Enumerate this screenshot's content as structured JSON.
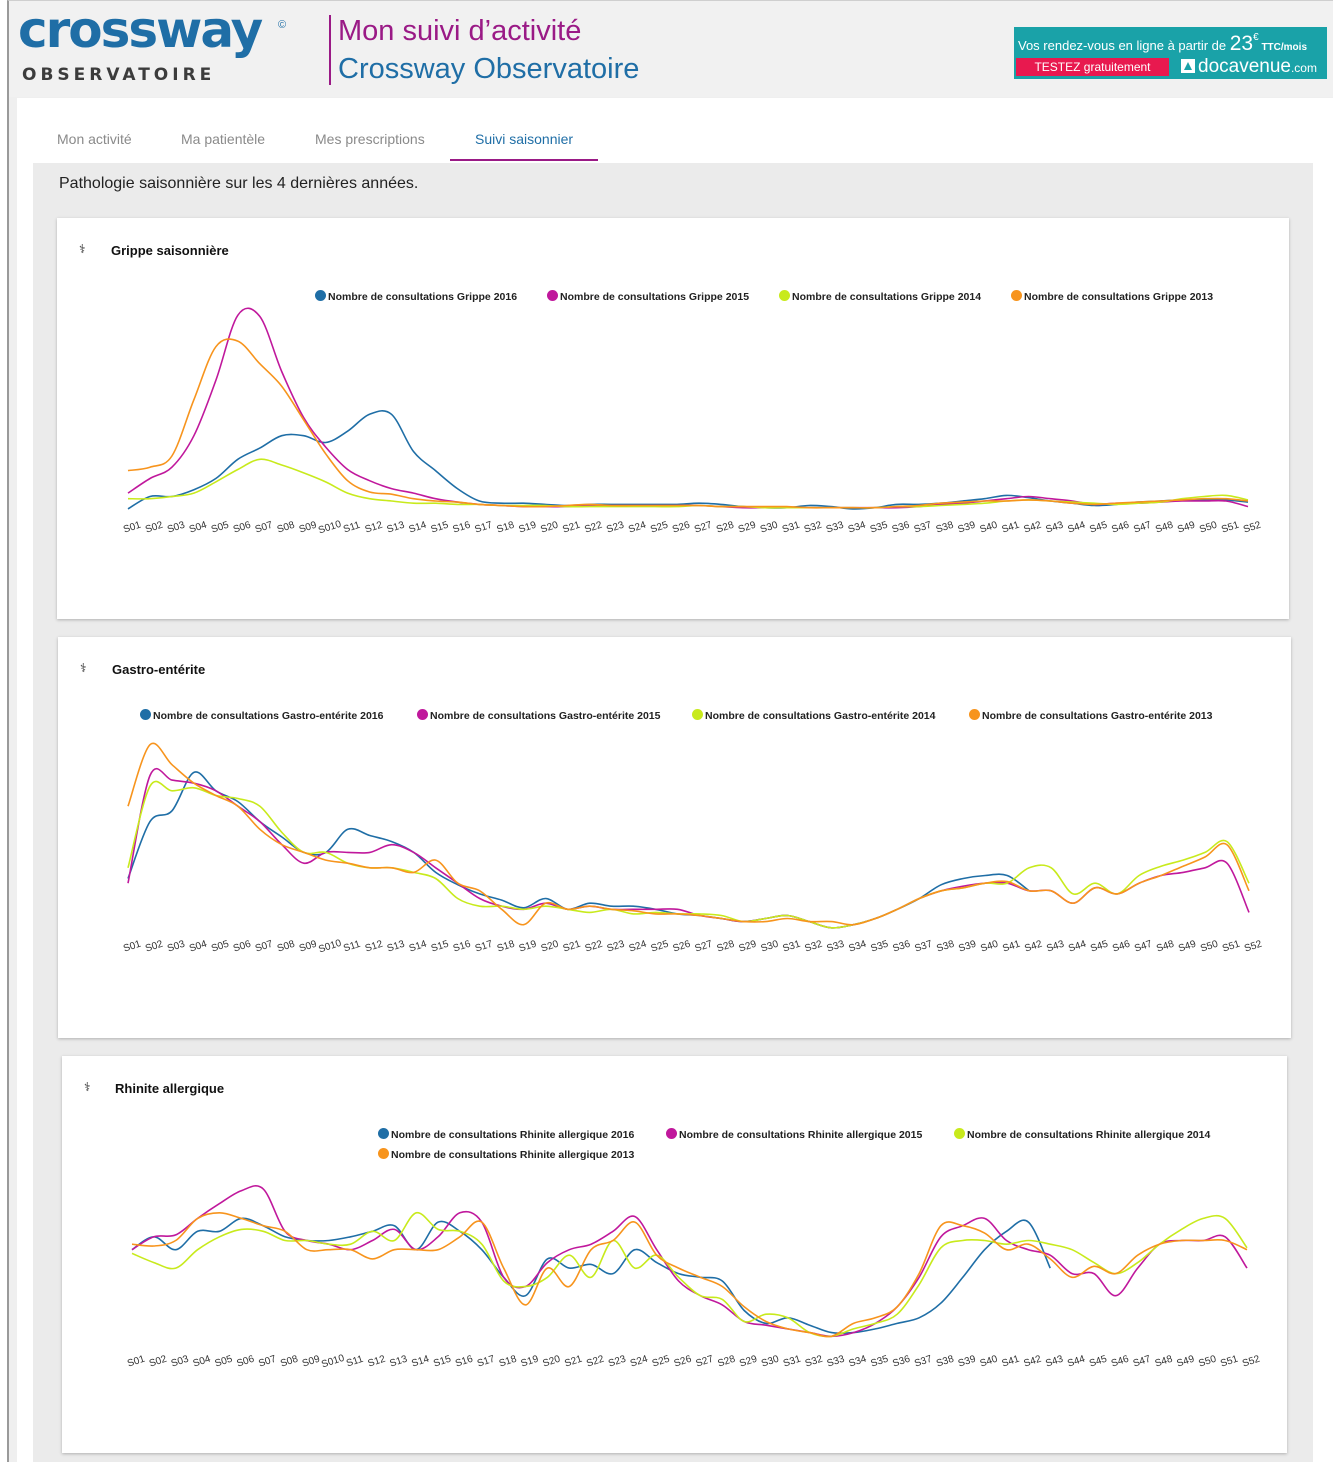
{
  "header": {
    "logo_word": "crossway",
    "logo_reg": "©",
    "logo_sub": "OBSERVATOIRE",
    "title_line1": "Mon suivi d’activité",
    "title_line2": "Crossway Observatoire"
  },
  "ad": {
    "text_prefix": "Vos rendez-vous en ligne à partir de ",
    "price": "23",
    "currency": "€",
    "suffix": " TTC/mois",
    "button": "TESTEZ gratuitement",
    "brand_main": "docavenue",
    "brand_ext": ".com",
    "background": "#1aa2a8",
    "button_color": "#e8194f"
  },
  "tabs": [
    {
      "label": "Mon activité",
      "active": false
    },
    {
      "label": "Ma patientèle",
      "active": false
    },
    {
      "label": "Mes prescriptions",
      "active": false
    },
    {
      "label": "Suivi saisonnier",
      "active": true
    }
  ],
  "subtitle": "Pathologie saisonnière sur les 4 dernières années.",
  "colors": {
    "y2016": "#1f6ea6",
    "y2015": "#c0189c",
    "y2014": "#c8ea1c",
    "y2013": "#f7941d",
    "accent": "#9a1a86"
  },
  "weeks": [
    "S01",
    "S02",
    "S03",
    "S04",
    "S05",
    "S06",
    "S07",
    "S08",
    "S09",
    "S010",
    "S11",
    "S12",
    "S13",
    "S14",
    "S15",
    "S16",
    "S17",
    "S18",
    "S19",
    "S20",
    "S21",
    "S22",
    "S23",
    "S24",
    "S25",
    "S26",
    "S27",
    "S28",
    "S29",
    "S30",
    "S31",
    "S32",
    "S33",
    "S34",
    "S35",
    "S36",
    "S37",
    "S38",
    "S39",
    "S40",
    "S41",
    "S42",
    "S43",
    "S44",
    "S45",
    "S46",
    "S47",
    "S48",
    "S49",
    "S50",
    "S51",
    "S52"
  ],
  "chart_data": [
    {
      "type": "line",
      "title": "Grippe saisonnière",
      "categories_ref": "weeks",
      "series": [
        {
          "name": "Nombre de consultations Grippe 2016",
          "color": "#1f6ea6",
          "values": [
            1,
            12,
            12,
            18,
            28,
            45,
            55,
            66,
            66,
            60,
            70,
            85,
            85,
            52,
            35,
            19,
            8,
            6,
            6,
            5,
            4,
            5,
            5,
            5,
            5,
            5,
            6,
            5,
            3,
            2,
            2,
            4,
            3,
            1,
            2,
            5,
            5,
            6,
            8,
            10,
            13,
            11,
            8,
            6,
            4,
            5,
            7,
            8,
            9,
            9,
            9,
            7
          ]
        },
        {
          "name": "Nombre de consultations Grippe 2015",
          "color": "#c0189c",
          "values": [
            15,
            28,
            38,
            66,
            115,
            173,
            172,
            123,
            82,
            56,
            36,
            26,
            19,
            15,
            10,
            7,
            5,
            4,
            3,
            3,
            3,
            4,
            4,
            4,
            4,
            4,
            4,
            3,
            2,
            2,
            2,
            2,
            2,
            2,
            2,
            2,
            3,
            5,
            6,
            8,
            10,
            12,
            10,
            8,
            5,
            6,
            6,
            7,
            8,
            8,
            8,
            3
          ]
        },
        {
          "name": "Nombre de consultations Grippe 2014",
          "color": "#c8ea1c",
          "values": [
            10,
            10,
            12,
            15,
            25,
            36,
            45,
            40,
            33,
            25,
            15,
            10,
            8,
            6,
            6,
            5,
            5,
            4,
            4,
            4,
            3,
            3,
            3,
            3,
            3,
            3,
            4,
            3,
            3,
            2,
            2,
            2,
            2,
            2,
            2,
            3,
            3,
            4,
            5,
            6,
            8,
            9,
            8,
            7,
            6,
            5,
            6,
            7,
            10,
            12,
            13,
            9
          ]
        },
        {
          "name": "Nombre de consultations Grippe 2013",
          "color": "#f7941d",
          "values": [
            35,
            38,
            48,
            98,
            145,
            150,
            130,
            110,
            80,
            50,
            26,
            16,
            14,
            10,
            8,
            7,
            5,
            4,
            3,
            3,
            4,
            5,
            4,
            4,
            4,
            4,
            4,
            3,
            3,
            3,
            3,
            2,
            2,
            2,
            2,
            3,
            4,
            6,
            7,
            8,
            8,
            9,
            8,
            6,
            5,
            6,
            7,
            8,
            9,
            10,
            10,
            8
          ]
        }
      ]
    },
    {
      "type": "line",
      "title": "Gastro-entérite",
      "categories_ref": "weeks",
      "series": [
        {
          "name": "Nombre de consultations Gastro-entérite 2016",
          "color": "#1f6ea6",
          "values": [
            38,
            75,
            82,
            107,
            95,
            88,
            75,
            65,
            55,
            55,
            70,
            66,
            62,
            55,
            42,
            34,
            28,
            24,
            19,
            25,
            18,
            22,
            20,
            20,
            18,
            15,
            14,
            12,
            10,
            12,
            14,
            10,
            6,
            8,
            12,
            18,
            25,
            34,
            38,
            40,
            40,
            30
          ]
        },
        {
          "name": "Nombre de consultations Gastro-entérite 2015",
          "color": "#c0189c",
          "values": [
            35,
            105,
            102,
            100,
            95,
            85,
            75,
            60,
            48,
            55,
            55,
            55,
            60,
            55,
            45,
            35,
            25,
            20,
            18,
            22,
            18,
            20,
            18,
            18,
            18,
            18,
            14,
            12,
            10,
            12,
            14,
            10,
            6,
            8,
            12,
            18,
            25,
            30,
            33,
            35,
            35,
            30,
            30,
            22,
            32,
            28,
            35,
            40,
            42,
            45,
            48,
            16
          ]
        },
        {
          "name": "Nombre de consultations Gastro-entérite 2014",
          "color": "#c8ea1c",
          "values": [
            45,
            98,
            95,
            97,
            92,
            90,
            85,
            68,
            55,
            55,
            48,
            45,
            45,
            42,
            38,
            25,
            20,
            20,
            18,
            20,
            18,
            16,
            18,
            15,
            16,
            15,
            15,
            14,
            10,
            12,
            14,
            10,
            6,
            8,
            12,
            18,
            25,
            30,
            32,
            35,
            35,
            45,
            45,
            28,
            35,
            28,
            40,
            46,
            50,
            55,
            62,
            35
          ]
        },
        {
          "name": "Nombre de consultations Gastro-entérite 2013",
          "color": "#f7941d",
          "values": [
            85,
            125,
            112,
            100,
            92,
            85,
            70,
            60,
            55,
            50,
            48,
            45,
            45,
            42,
            50,
            35,
            30,
            18,
            8,
            22,
            18,
            20,
            18,
            17,
            15,
            15,
            14,
            12,
            10,
            10,
            12,
            10,
            10,
            8,
            12,
            18,
            25,
            30,
            32,
            35,
            36,
            30,
            30,
            22,
            32,
            28,
            35,
            40,
            46,
            52,
            60,
            30
          ]
        }
      ]
    },
    {
      "type": "line",
      "title": "Rhinite allergique",
      "categories_ref": "weeks",
      "series": [
        {
          "name": "Nombre de consultations Rhinite allergique 2016",
          "color": "#1f6ea6",
          "values": [
            55,
            62,
            55,
            65,
            65,
            72,
            68,
            62,
            60,
            60,
            62,
            65,
            68,
            55,
            70,
            65,
            55,
            40,
            30,
            50,
            45,
            47,
            42,
            55,
            48,
            42,
            40,
            38,
            22,
            15,
            18,
            14,
            10,
            10,
            12,
            15,
            18,
            26,
            40,
            55,
            65,
            70,
            45
          ]
        },
        {
          "name": "Nombre de consultations Rhinite allergique 2015",
          "color": "#c0189c",
          "values": [
            55,
            62,
            63,
            72,
            80,
            87,
            88,
            65,
            60,
            58,
            55,
            60,
            66,
            55,
            62,
            75,
            70,
            40,
            35,
            48,
            55,
            58,
            65,
            73,
            55,
            38,
            30,
            25,
            16,
            14,
            12,
            10,
            8,
            10,
            15,
            24,
            40,
            62,
            68,
            72,
            60,
            55,
            52,
            42,
            42,
            30,
            45,
            58,
            60,
            60,
            62,
            45
          ]
        },
        {
          "name": "Nombre de consultations Rhinite allergique 2014",
          "color": "#c8ea1c",
          "values": [
            53,
            48,
            45,
            55,
            62,
            66,
            65,
            60,
            60,
            58,
            58,
            65,
            60,
            75,
            66,
            65,
            58,
            38,
            35,
            40,
            52,
            40,
            60,
            45,
            52,
            40,
            30,
            28,
            16,
            20,
            18,
            10,
            8,
            12,
            15,
            20,
            36,
            56,
            60,
            60,
            58,
            60,
            58,
            55,
            48,
            42,
            48,
            58,
            66,
            72,
            72,
            56
          ]
        },
        {
          "name": "Nombre de consultations Rhinite allergique 2013",
          "color": "#f7941d",
          "values": [
            58,
            57,
            60,
            72,
            75,
            72,
            68,
            65,
            55,
            55,
            55,
            50,
            55,
            55,
            55,
            62,
            70,
            45,
            25,
            45,
            35,
            55,
            60,
            70,
            52,
            45,
            40,
            35,
            24,
            16,
            12,
            10,
            8,
            15,
            18,
            24,
            42,
            68,
            68,
            64,
            55,
            58,
            50,
            40,
            46,
            42,
            52,
            58,
            60,
            60,
            60,
            55
          ]
        }
      ]
    }
  ]
}
